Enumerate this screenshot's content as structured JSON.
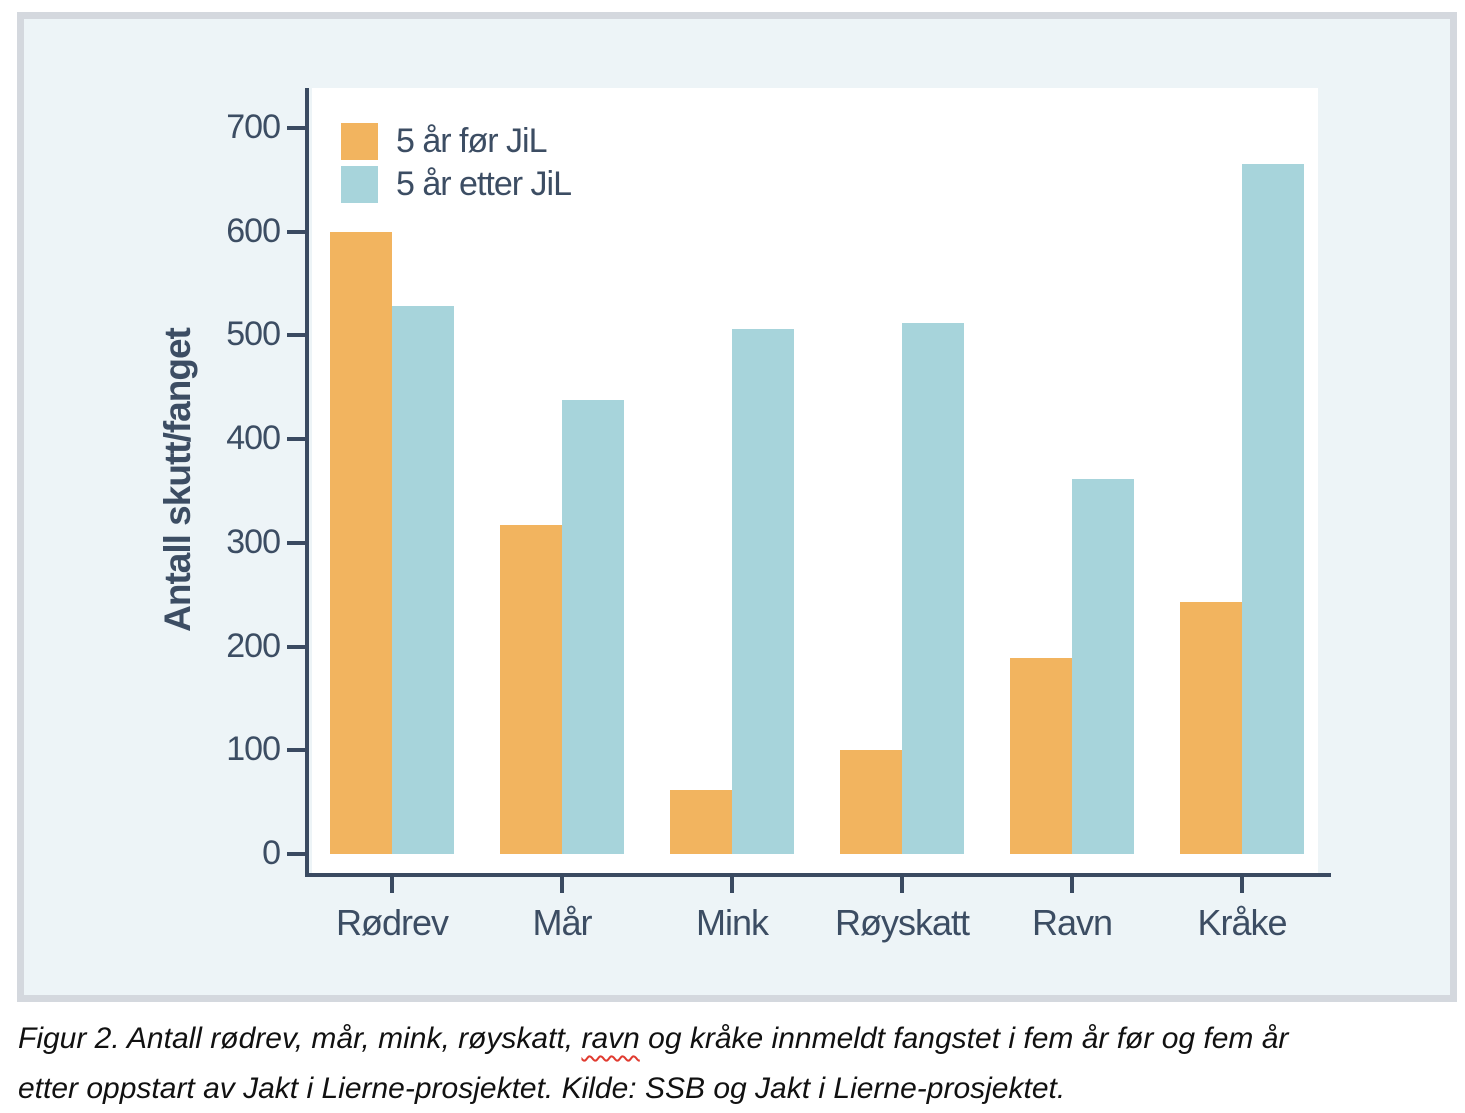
{
  "chart_data": {
    "type": "bar",
    "title": "",
    "categories": [
      "Rødrev",
      "Mår",
      "Mink",
      "Røyskatt",
      "Ravn",
      "Kråke"
    ],
    "series": [
      {
        "name": "5 år før JiL",
        "color": "#F2B45F",
        "values": [
          600,
          317,
          62,
          100,
          189,
          243
        ]
      },
      {
        "name": "5 år etter JiL",
        "color": "#A7D4DB",
        "values": [
          528,
          438,
          506,
          512,
          362,
          665
        ]
      }
    ],
    "xlabel": "",
    "ylabel": "Antall skutt/fanget",
    "ylim": [
      0,
      700
    ],
    "yticks": [
      0,
      100,
      200,
      300,
      400,
      500,
      600,
      700
    ],
    "grid": false,
    "legend_position": "top-left"
  },
  "figure_caption": {
    "line1_pre": "Figur 2. Antall rødrev, mår, mink, røyskatt, ",
    "misspelled_word": "ravn",
    "line1_post": " og kråke innmeldt fangstet i fem år før og fem år",
    "line2": "etter oppstart av Jakt i Lierne-prosjektet. Kilde: SSB og Jakt i Lierne-prosjektet."
  },
  "colors": {
    "bar_before": "#F2B45F",
    "bar_after": "#A7D4DB",
    "panel_background": "#EDF4F7",
    "panel_border": "#D4D8DE",
    "plot_background": "#FFFFFF",
    "axis": "#3A4A61",
    "chart_text": "#3C4D63",
    "caption_text": "#111111",
    "spellcheck_underline": "#E03A2F"
  }
}
